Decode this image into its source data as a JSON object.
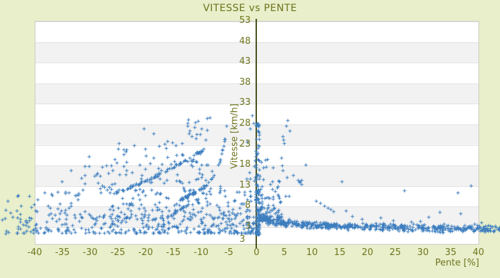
{
  "page": {
    "background": "#e9efca"
  },
  "chart_data": {
    "type": "scatter",
    "title": "VITESSE vs PENTE",
    "xlabel": "Pente [%]",
    "ylabel": "Vitesse [km/h]",
    "x_ticks": [
      -40,
      -35,
      -30,
      -25,
      -20,
      -15,
      -10,
      -5,
      0,
      5,
      10,
      15,
      20,
      25,
      30,
      35,
      40
    ],
    "y_ticks": [
      53,
      48,
      43,
      38,
      33,
      28,
      23,
      18,
      13,
      8,
      3
    ],
    "y_axis_extra_label": "3",
    "xlim": [
      -40,
      40
    ],
    "ylim": [
      -1.4,
      53
    ],
    "grid": true,
    "legend": "none",
    "band_colors": [
      "#ffffff",
      "#f2f2f2"
    ],
    "marker": {
      "shape": "plus",
      "size": 5,
      "color": "#3d7ebf"
    },
    "axis_line_color": "#48501a",
    "text_color": "#6e741e",
    "grid_color": "#e3e3e3",
    "frame_color": "#cccccc",
    "seed": 42,
    "scatter_clusters": [
      {
        "type": "cloud",
        "n": 300,
        "p": [
          -43.5,
          -0.5,
          -1.35
        ],
        "v": [
          1.4,
          6.2,
          2.0
        ]
      },
      {
        "type": "cloud",
        "n": 170,
        "p": [
          -38,
          -1,
          -1.25
        ],
        "v": [
          5,
          12,
          1.45
        ]
      },
      {
        "type": "cloud",
        "n": 80,
        "p": [
          -32,
          -6,
          -1.2
        ],
        "v": [
          11,
          18,
          1.4
        ]
      },
      {
        "type": "cloud",
        "n": 40,
        "p": [
          -26,
          -8,
          -1.1
        ],
        "v": [
          18,
          24,
          1.3
        ]
      },
      {
        "type": "cloud",
        "n": 14,
        "p": [
          -13.5,
          -8,
          1
        ],
        "v": [
          24,
          29.5,
          1.2
        ]
      },
      {
        "type": "cloud",
        "n": 24,
        "p": [
          -46,
          -39,
          1
        ],
        "v": [
          1.3,
          10.5,
          1.6
        ]
      },
      {
        "type": "chain",
        "n": 75,
        "p0": -25.8,
        "p1": -9.6,
        "base": 11.2,
        "lin": 7.2,
        "amp": 3.5,
        "pow": 2,
        "jp": 0.14,
        "jv": 0.3
      },
      {
        "type": "chain",
        "n": 60,
        "p0": -13.8,
        "p1": -5.3,
        "base": 9.4,
        "lin": 6,
        "amp": 13,
        "pow": 6,
        "jp": 0.1,
        "jv": 0.3
      },
      {
        "type": "chain",
        "n": 26,
        "p0": -16.2,
        "p1": -12.2,
        "base": 5.2,
        "lin": 3.4,
        "amp": 0,
        "pow": 1,
        "jp": 0.1,
        "jv": 0.22
      },
      {
        "type": "cloud",
        "n": 150,
        "p": [
          -0.15,
          0.5,
          1
        ],
        "v": [
          1.2,
          29,
          2.6
        ]
      },
      {
        "type": "cloud",
        "n": 10,
        "p": [
          -2.2,
          -0.3,
          1
        ],
        "v": [
          14,
          30,
          1
        ]
      },
      {
        "type": "hband",
        "n": 520,
        "p": [
          0.4,
          43.8,
          1.35
        ],
        "base": 2.1,
        "amp": 27,
        "off": 9,
        "slope": -0.004,
        "jit": 0.55
      },
      {
        "type": "cloud",
        "n": 60,
        "p": [
          0.4,
          4.5,
          1.4
        ],
        "v": [
          5,
          10,
          1.5
        ]
      },
      {
        "type": "cloud",
        "n": 26,
        "p": [
          0.5,
          9,
          1.3
        ],
        "v": [
          10,
          20,
          1.3
        ]
      },
      {
        "type": "points",
        "pts": [
          [
            4.7,
            24.9
          ],
          [
            4.8,
            24.1
          ],
          [
            4.9,
            23.2
          ],
          [
            5.3,
            27.5
          ],
          [
            5.6,
            28.8
          ],
          [
            6.0,
            26.3
          ],
          [
            2.0,
            19.4
          ],
          [
            1.7,
            17.6
          ],
          [
            1.2,
            14.5
          ],
          [
            4.0,
            14.2
          ],
          [
            4.1,
            13.9
          ],
          [
            5.5,
            15.0
          ],
          [
            7.5,
            14.4
          ],
          [
            7.8,
            13.9
          ],
          [
            8.1,
            13.3
          ],
          [
            15.3,
            14.0
          ],
          [
            26.6,
            11.8
          ],
          [
            2.8,
            12.2
          ],
          [
            0.9,
            10.8
          ],
          [
            5.8,
            10.5
          ],
          [
            10.7,
            9.3
          ],
          [
            11.5,
            8.7
          ],
          [
            12.2,
            8.1
          ],
          [
            12.8,
            7.6
          ],
          [
            13.4,
            7.2
          ],
          [
            13.9,
            6.8
          ],
          [
            16.1,
            6.9
          ],
          [
            27.9,
            4.1
          ],
          [
            38.6,
            12.9
          ],
          [
            36.3,
            11.3
          ],
          [
            36.8,
            6.2
          ],
          [
            31.0,
            5.4
          ],
          [
            39.2,
            3.7
          ],
          [
            33.0,
            6.6
          ],
          [
            29.5,
            4.4
          ],
          [
            22.3,
            5.2
          ],
          [
            19.0,
            4.9
          ],
          [
            24.6,
            4.6
          ],
          [
            17.2,
            5.6
          ],
          [
            43.1,
            2.9
          ],
          [
            41.8,
            3.3
          ],
          [
            40.5,
            4.0
          ],
          [
            -20.3,
            26.8
          ],
          [
            -12.4,
            28.2
          ],
          [
            -10.6,
            28.7
          ],
          [
            -9.0,
            29.4
          ],
          [
            -8.5,
            29.6
          ],
          [
            -0.8,
            30.1
          ],
          [
            -30.2,
            20.1
          ],
          [
            -33.5,
            16.7
          ],
          [
            -35.1,
            13.9
          ],
          [
            -38.2,
            11.2
          ],
          [
            -41.0,
            10.4
          ],
          [
            -44.9,
            9.2
          ],
          [
            -43.0,
            10.6
          ],
          [
            -45.3,
            7.1
          ],
          [
            -43.3,
            6.9
          ],
          [
            -23.5,
            21.8
          ],
          [
            -27.8,
            17.5
          ],
          [
            -18.6,
            25.6
          ]
        ]
      }
    ]
  }
}
